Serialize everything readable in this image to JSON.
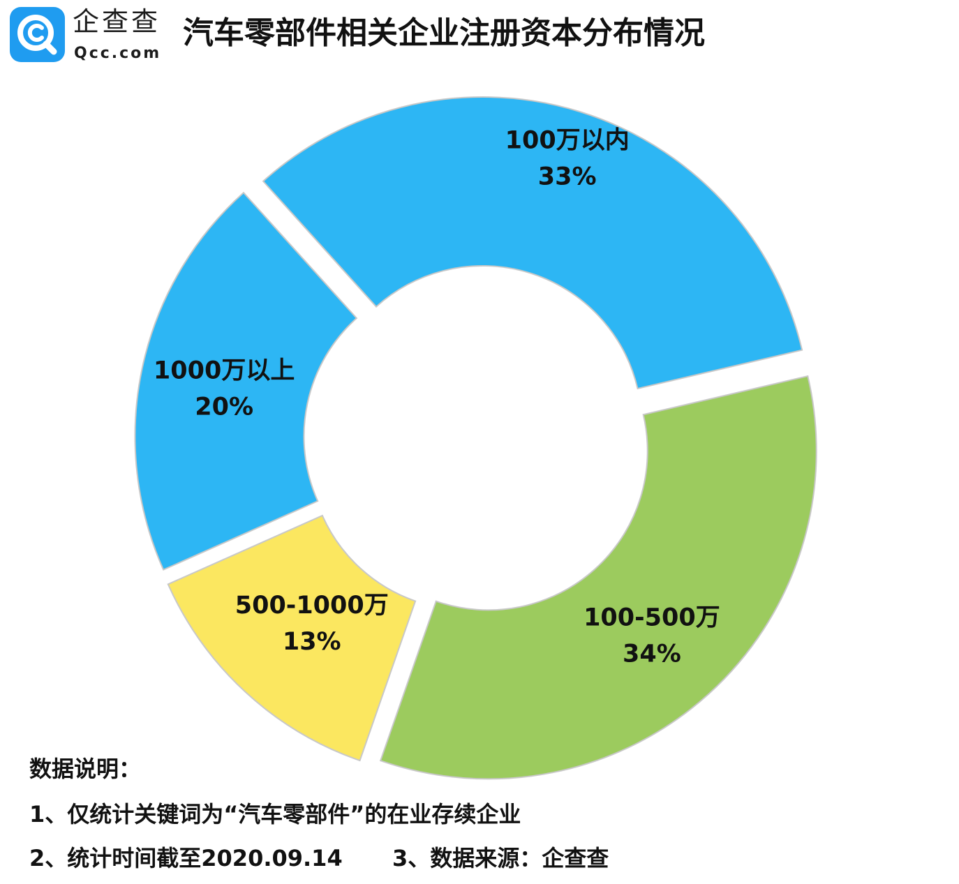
{
  "logo": {
    "name_cn": "企查查",
    "domain": "Qcc.com",
    "icon": "qcc-logo-icon",
    "color": "#1f9cf0"
  },
  "title": "汽车零部件相关企业注册资本分布情况",
  "chart_data": {
    "type": "pie",
    "variant": "exploded-donut",
    "title": "汽车零部件相关企业注册资本分布情况",
    "unit": "%",
    "slices": [
      {
        "label": "100万以内",
        "value": 33,
        "display": "33%",
        "color": "#2db6f4"
      },
      {
        "label": "100-500万",
        "value": 34,
        "display": "34%",
        "color": "#9ccb5e"
      },
      {
        "label": "500-1000万",
        "value": 13,
        "display": "13%",
        "color": "#fbe760"
      },
      {
        "label": "1000万以上",
        "value": 20,
        "display": "20%",
        "color": "#2db6f4"
      }
    ]
  },
  "notes": {
    "heading": "数据说明：",
    "line1": "1、仅统计关键词为“汽车零部件”的在业存续企业",
    "line2": "2、统计时间截至2020.09.14",
    "line3": "3、数据来源：企查查"
  }
}
